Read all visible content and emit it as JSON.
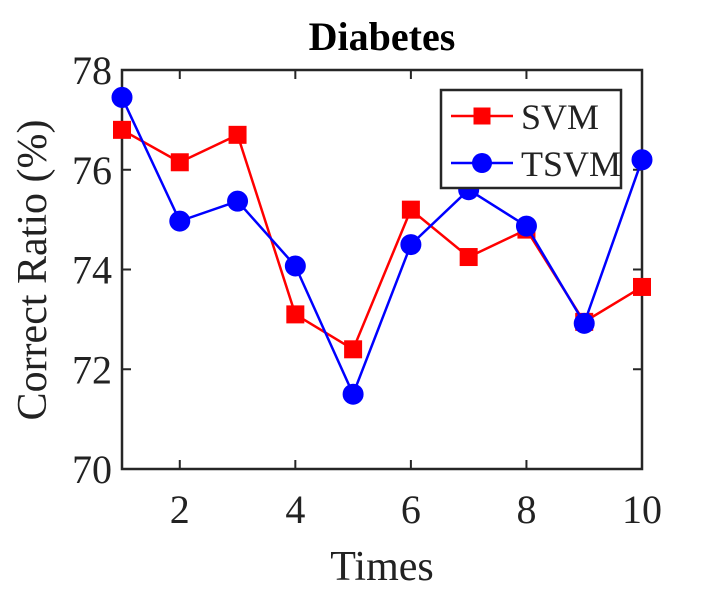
{
  "chart_data": {
    "type": "line",
    "title": "Diabetes",
    "xlabel": "Times",
    "ylabel": "Correct Ratio (%)",
    "xlim": [
      1,
      10
    ],
    "ylim": [
      70,
      78
    ],
    "xticks": [
      2,
      4,
      6,
      8,
      10
    ],
    "yticks": [
      70,
      72,
      74,
      76,
      78
    ],
    "grid": false,
    "legend_position": "top-right",
    "x": [
      1,
      2,
      3,
      4,
      5,
      6,
      7,
      8,
      9,
      10
    ],
    "series": [
      {
        "name": "SVM",
        "color": "#ff0000",
        "marker": "square",
        "values": [
          76.8,
          76.15,
          76.7,
          73.1,
          72.4,
          75.2,
          74.25,
          74.8,
          72.95,
          73.65
        ]
      },
      {
        "name": "TSVM",
        "color": "#0000ff",
        "marker": "circle",
        "values": [
          77.45,
          74.97,
          75.37,
          74.07,
          71.5,
          74.5,
          75.6,
          74.87,
          72.92,
          76.2
        ]
      }
    ]
  }
}
